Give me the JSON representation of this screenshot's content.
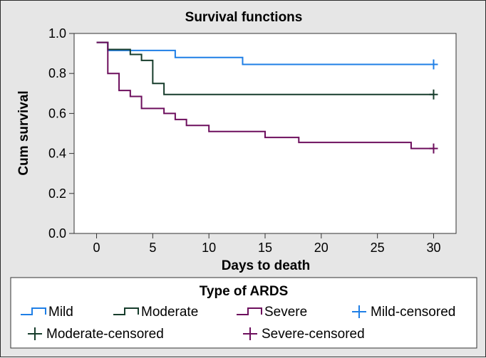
{
  "chart_data": {
    "type": "line",
    "title": "Survival functions",
    "xlabel": "Days to death",
    "ylabel": "Cum survival",
    "xlim": [
      -2,
      32
    ],
    "ylim": [
      0,
      1.0
    ],
    "x_ticks": [
      0,
      5,
      10,
      15,
      20,
      25,
      30
    ],
    "y_ticks": [
      0.0,
      0.2,
      0.4,
      0.6,
      0.8,
      1.0
    ],
    "y_tick_labels": [
      "0.0",
      "0.2",
      "0.4",
      "0.6",
      "0.8",
      "1.0"
    ],
    "legend_title": "Type of ARDS",
    "series": [
      {
        "name": "Mild",
        "color": "#1f7fe6",
        "x": [
          0,
          1,
          7,
          13,
          30
        ],
        "y": [
          0.955,
          0.915,
          0.88,
          0.845,
          0.845
        ],
        "censored": {
          "name": "Mild-censored",
          "x": 30,
          "y": 0.845
        }
      },
      {
        "name": "Moderate",
        "color": "#173d2c",
        "x": [
          0,
          1,
          3,
          4,
          5,
          6,
          30
        ],
        "y": [
          0.955,
          0.92,
          0.895,
          0.865,
          0.75,
          0.695,
          0.695
        ],
        "censored": {
          "name": "Moderate-censored",
          "x": 30,
          "y": 0.695
        }
      },
      {
        "name": "Severe",
        "color": "#6d0f5d",
        "x": [
          0,
          1,
          2,
          3,
          4,
          6,
          7,
          8,
          10,
          15,
          18,
          28,
          30
        ],
        "y": [
          0.955,
          0.8,
          0.715,
          0.685,
          0.625,
          0.6,
          0.57,
          0.54,
          0.51,
          0.48,
          0.455,
          0.425,
          0.425
        ],
        "censored": {
          "name": "Severe-censored",
          "x": 30,
          "y": 0.425
        }
      }
    ],
    "legend_items": [
      {
        "label": "Mild",
        "kind": "step",
        "color": "#1f7fe6"
      },
      {
        "label": "Moderate",
        "kind": "step",
        "color": "#173d2c"
      },
      {
        "label": "Severe",
        "kind": "step",
        "color": "#6d0f5d"
      },
      {
        "label": "Mild-censored",
        "kind": "plus",
        "color": "#1f7fe6"
      },
      {
        "label": "Moderate-censored",
        "kind": "plus",
        "color": "#173d2c"
      },
      {
        "label": "Severe-censored",
        "kind": "plus",
        "color": "#6d0f5d"
      }
    ]
  }
}
